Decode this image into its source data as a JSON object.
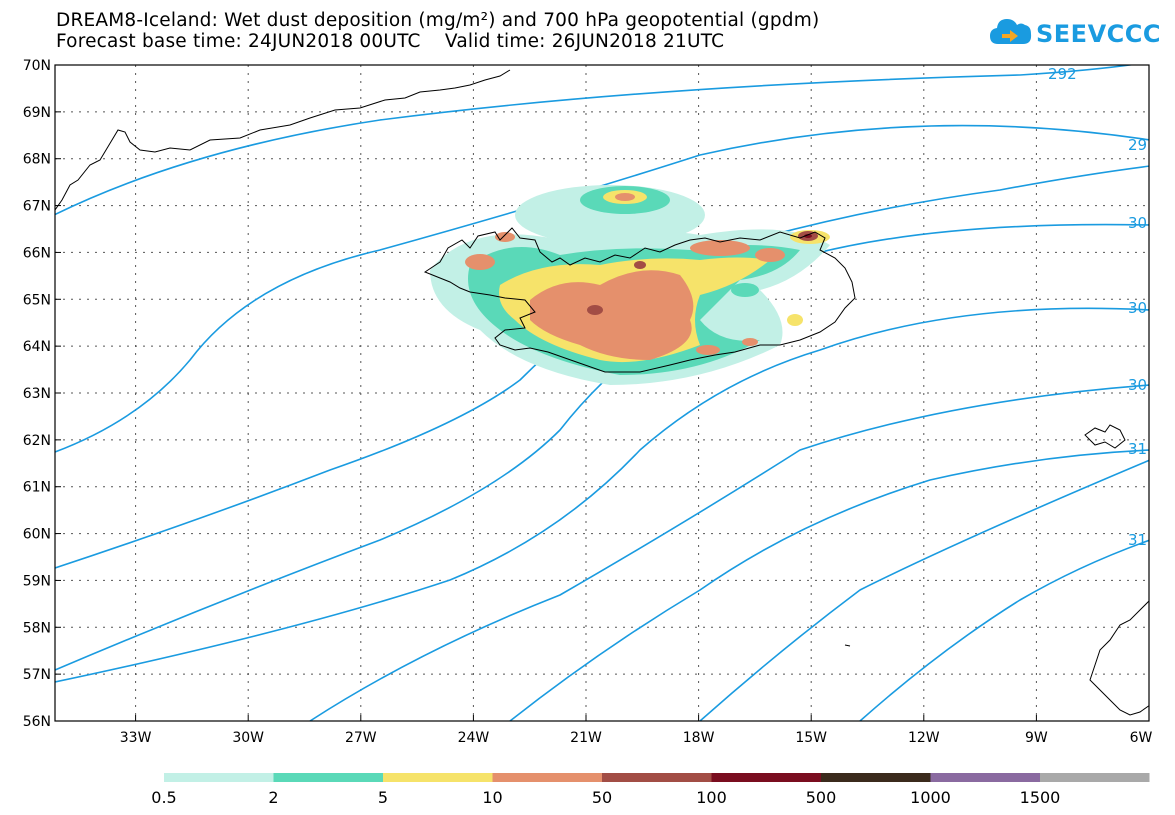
{
  "title_line1": "DREAM8-Iceland: Wet dust deposition (mg/m²) and 700 hPa geopotential (gpdm)",
  "title_line2": "Forecast base time: 24JUN2018 00UTC    Valid time: 26JUN2018 21UTC",
  "logo_text": "SEEVCCC",
  "lat_labels": [
    "70N",
    "69N",
    "68N",
    "67N",
    "66N",
    "65N",
    "64N",
    "63N",
    "62N",
    "61N",
    "60N",
    "59N",
    "58N",
    "57N",
    "56N"
  ],
  "lon_labels": [
    "33W",
    "30W",
    "27W",
    "24W",
    "21W",
    "18W",
    "15W",
    "12W",
    "9W",
    "6W"
  ],
  "contour_labels": [
    "292",
    "29",
    "30",
    "30",
    "30",
    "31",
    "31"
  ],
  "legend": {
    "labels": [
      "0.5",
      "2",
      "5",
      "10",
      "50",
      "100",
      "500",
      "1000",
      "1500"
    ],
    "colors": [
      "#c2f0e6",
      "#5ad9b8",
      "#f6e36a",
      "#e5906c",
      "#a24d45",
      "#7a0d1f",
      "#3b2a1c",
      "#8a6aa0",
      "#a9a9a9"
    ]
  },
  "colors": {
    "contour": "#1a9be0",
    "coast": "#000000",
    "brand": "#1a9be0"
  }
}
